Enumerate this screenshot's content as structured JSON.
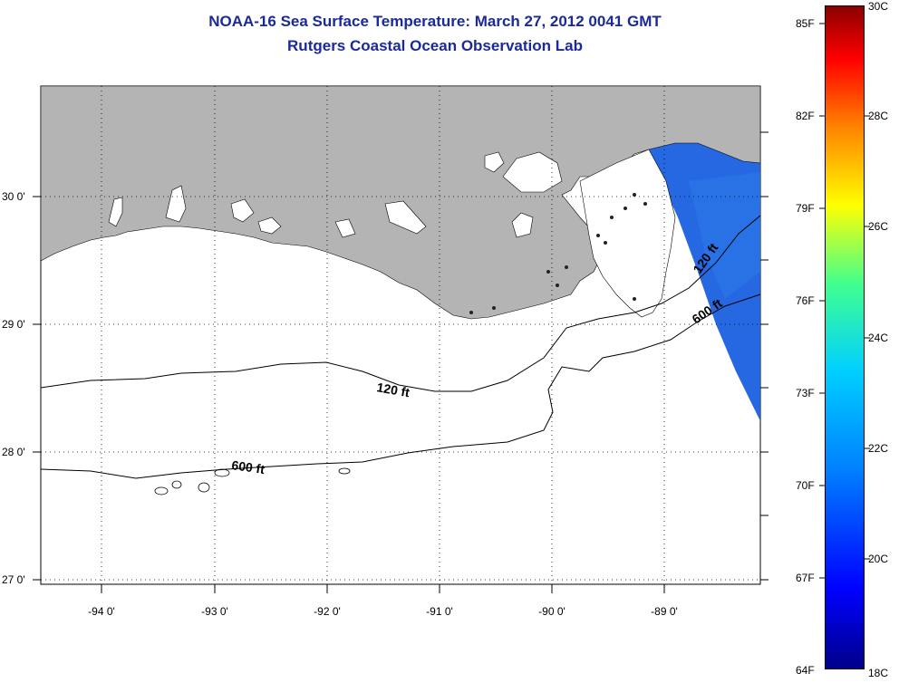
{
  "title": {
    "line1": "NOAA-16 Sea Surface Temperature:  March 27, 2012 0041 GMT",
    "line2": "Rutgers Coastal Ocean Observation Lab"
  },
  "map": {
    "lat_labels": [
      "30 0'",
      "29 0'",
      "28 0'",
      "27 0'"
    ],
    "lon_labels": [
      "-94 0'",
      "-93 0'",
      "-92 0'",
      "-91 0'",
      "-90 0'",
      "-89 0'"
    ],
    "contours": {
      "label_120_left": "120 ft",
      "label_600_left": "600 ft",
      "label_120_right": "120 ft",
      "label_600_right": "600 ft"
    },
    "land_color": "#b4b4b4",
    "sst_color": "#1a5fe0"
  },
  "colorbar": {
    "fahrenheit_labels": [
      "85F",
      "82F",
      "79F",
      "76F",
      "73F",
      "70F",
      "67F",
      "64F"
    ],
    "celsius_labels": [
      "30C",
      "28C",
      "26C",
      "24C",
      "22C",
      "20C",
      "18C"
    ],
    "colors": [
      "#00008b",
      "#0000ff",
      "#0080ff",
      "#00d0ff",
      "#40ff90",
      "#ffff00",
      "#ff8000",
      "#ff0000",
      "#8b0000"
    ]
  }
}
